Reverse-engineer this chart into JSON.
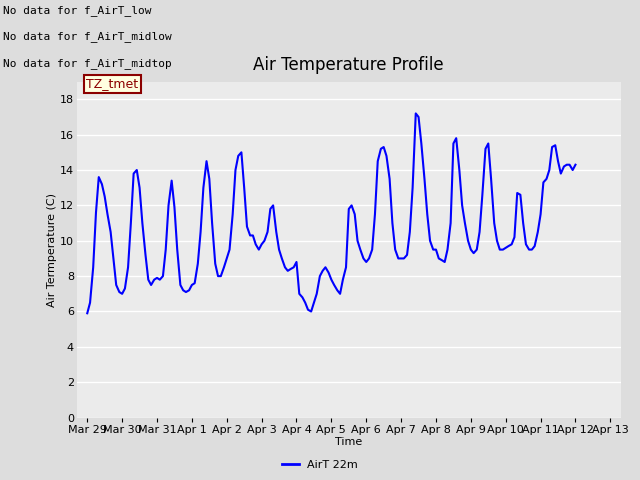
{
  "title": "Air Temperature Profile",
  "xlabel": "Time",
  "ylabel": "Air Termperature (C)",
  "line_color": "#0000FF",
  "line_label": "AirT 22m",
  "ylim": [
    0,
    19
  ],
  "yticks": [
    0,
    2,
    4,
    6,
    8,
    10,
    12,
    14,
    16,
    18
  ],
  "background_color": "#dddddd",
  "plot_bg_color": "#ebebeb",
  "annotations_text": [
    "No data for f_AirT_low",
    "No data for f_AirT_midlow",
    "No data for f_AirT_midtop"
  ],
  "tz_label": "TZ_tmet",
  "x_tick_labels": [
    "Mar 29",
    "Mar 30",
    "Mar 31",
    "Apr 1",
    "Apr 2",
    "Apr 3",
    "Apr 4",
    "Apr 5",
    "Apr 6",
    "Apr 7",
    "Apr 8",
    "Apr 9",
    "Apr 10",
    "Apr 11",
    "Apr 12",
    "Apr 13"
  ],
  "time_data": [
    0.0,
    0.08,
    0.17,
    0.25,
    0.33,
    0.42,
    0.5,
    0.58,
    0.67,
    0.75,
    0.83,
    0.92,
    1.0,
    1.08,
    1.17,
    1.25,
    1.33,
    1.42,
    1.5,
    1.58,
    1.67,
    1.75,
    1.83,
    1.92,
    2.0,
    2.08,
    2.17,
    2.25,
    2.33,
    2.42,
    2.5,
    2.58,
    2.67,
    2.75,
    2.83,
    2.92,
    3.0,
    3.08,
    3.17,
    3.25,
    3.33,
    3.42,
    3.5,
    3.58,
    3.67,
    3.75,
    3.83,
    3.92,
    4.0,
    4.08,
    4.17,
    4.25,
    4.33,
    4.42,
    4.5,
    4.58,
    4.67,
    4.75,
    4.83,
    4.92,
    5.0,
    5.08,
    5.17,
    5.25,
    5.33,
    5.42,
    5.5,
    5.58,
    5.67,
    5.75,
    5.83,
    5.92,
    6.0,
    6.08,
    6.17,
    6.25,
    6.33,
    6.42,
    6.5,
    6.58,
    6.67,
    6.75,
    6.83,
    6.92,
    7.0,
    7.08,
    7.17,
    7.25,
    7.33,
    7.42,
    7.5,
    7.58,
    7.67,
    7.75,
    7.83,
    7.92,
    8.0,
    8.08,
    8.17,
    8.25,
    8.33,
    8.42,
    8.5,
    8.58,
    8.67,
    8.75,
    8.83,
    8.92,
    9.0,
    9.08,
    9.17,
    9.25,
    9.33,
    9.42,
    9.5,
    9.58,
    9.67,
    9.75,
    9.83,
    9.92,
    10.0,
    10.08,
    10.17,
    10.25,
    10.33,
    10.42,
    10.5,
    10.58,
    10.67,
    10.75,
    10.83,
    10.92,
    11.0,
    11.08,
    11.17,
    11.25,
    11.33,
    11.42,
    11.5,
    11.58,
    11.67,
    11.75,
    11.83,
    11.92,
    12.0,
    12.08,
    12.17,
    12.25,
    12.33,
    12.42,
    12.5,
    12.58,
    12.67,
    12.75,
    12.83,
    12.92,
    13.0,
    13.08,
    13.17,
    13.25,
    13.33,
    13.42,
    13.5,
    13.58,
    13.67,
    13.75,
    13.83,
    13.92,
    14.0
  ],
  "temp_data": [
    5.9,
    6.5,
    8.5,
    11.6,
    13.6,
    13.2,
    12.5,
    11.5,
    10.5,
    9.0,
    7.5,
    7.1,
    7.0,
    7.3,
    8.5,
    11.0,
    13.8,
    14.0,
    13.0,
    11.0,
    9.2,
    7.8,
    7.5,
    7.8,
    7.9,
    7.8,
    8.0,
    9.5,
    12.0,
    13.4,
    11.9,
    9.5,
    7.5,
    7.2,
    7.1,
    7.2,
    7.5,
    7.6,
    8.7,
    10.5,
    13.0,
    14.5,
    13.5,
    11.0,
    8.7,
    8.0,
    8.0,
    8.5,
    9.0,
    9.5,
    11.5,
    14.0,
    14.8,
    15.0,
    13.0,
    10.8,
    10.3,
    10.3,
    9.8,
    9.5,
    9.8,
    10.0,
    10.5,
    11.8,
    12.0,
    10.5,
    9.5,
    9.0,
    8.5,
    8.3,
    8.4,
    8.5,
    8.8,
    7.0,
    6.8,
    6.5,
    6.1,
    6.0,
    6.5,
    7.0,
    8.0,
    8.3,
    8.5,
    8.2,
    7.8,
    7.5,
    7.2,
    7.0,
    7.8,
    8.5,
    11.8,
    12.0,
    11.5,
    10.0,
    9.5,
    9.0,
    8.8,
    9.0,
    9.5,
    11.5,
    14.5,
    15.2,
    15.3,
    14.8,
    13.5,
    11.0,
    9.5,
    9.0,
    9.0,
    9.0,
    9.2,
    10.5,
    13.0,
    17.2,
    17.0,
    15.5,
    13.5,
    11.5,
    10.0,
    9.5,
    9.5,
    9.0,
    8.9,
    8.8,
    9.5,
    11.0,
    15.5,
    15.8,
    14.0,
    12.0,
    11.0,
    10.0,
    9.5,
    9.3,
    9.5,
    10.5,
    12.6,
    15.2,
    15.5,
    13.5,
    11.0,
    10.0,
    9.5,
    9.5,
    9.6,
    9.7,
    9.8,
    10.2,
    12.7,
    12.6,
    11.0,
    9.8,
    9.5,
    9.5,
    9.7,
    10.5,
    11.5,
    13.3,
    13.5,
    14.0,
    15.3,
    15.4,
    14.5,
    13.8,
    14.2,
    14.3,
    14.3,
    14.0,
    14.3
  ],
  "figsize": [
    6.4,
    4.8
  ],
  "dpi": 100,
  "title_fontsize": 12,
  "tick_fontsize": 8,
  "ylabel_fontsize": 8,
  "xlabel_fontsize": 8,
  "annot_fontsize": 8,
  "legend_fontsize": 8,
  "linewidth": 1.5
}
